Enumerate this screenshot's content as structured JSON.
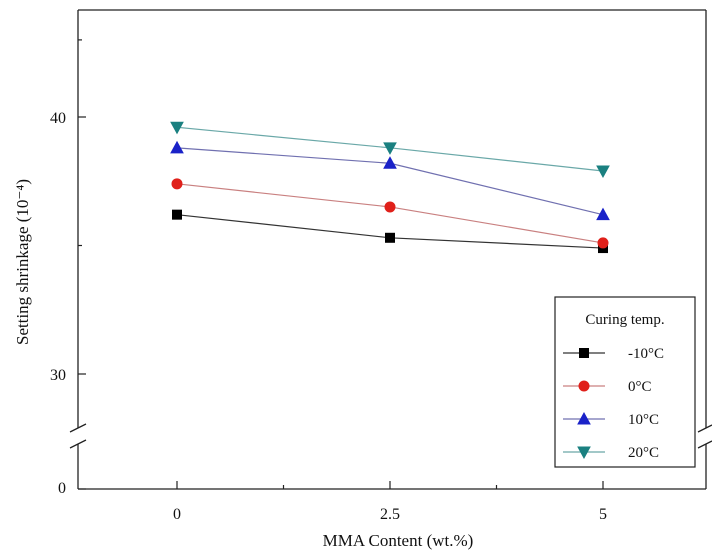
{
  "chart_data": {
    "type": "line",
    "title": "",
    "xlabel": "MMA Content (wt.%)",
    "ylabel": "Setting shrinkage (10⁻⁴)",
    "x": [
      0,
      2.5,
      5
    ],
    "x_tick_labels": [
      "0",
      "2.5",
      "5"
    ],
    "y_tick_labels": [
      "0",
      "30",
      "40"
    ],
    "y_axis_break": true,
    "ylim_upper_segment": [
      28,
      44
    ],
    "grid": false,
    "legend_title": "Curing temp.",
    "legend_position": "bottom-right",
    "series": [
      {
        "name": "-10°C",
        "values": [
          36.2,
          35.3,
          34.9
        ],
        "color": "#333333",
        "marker": "square",
        "marker_color": "#000000"
      },
      {
        "name": "0°C",
        "values": [
          37.4,
          36.5,
          35.1
        ],
        "color": "#c98080",
        "marker": "circle",
        "marker_color": "#e0201a"
      },
      {
        "name": "10°C",
        "values": [
          38.8,
          38.2,
          36.2
        ],
        "color": "#7070b0",
        "marker": "triangle-up",
        "marker_color": "#1a22c8"
      },
      {
        "name": "20°C",
        "values": [
          39.6,
          38.8,
          37.9
        ],
        "color": "#6aa8a8",
        "marker": "triangle-down",
        "marker_color": "#1a8080"
      }
    ]
  }
}
